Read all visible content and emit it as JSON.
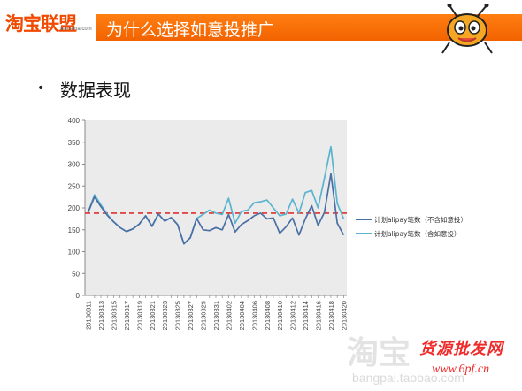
{
  "header": {
    "logo_main": "淘宝联盟",
    "logo_sub": "alimama.com",
    "title": "为什么选择如意投推广"
  },
  "bullet": {
    "text": "数据表现"
  },
  "watermark": {
    "left_text": "淘宝",
    "left_url": "bangpai.taobao.com",
    "right_title": "货源批发网",
    "right_url": "www.6pf.cn"
  },
  "colors": {
    "accent": "#f26300",
    "series1": "#4a6fa5",
    "series2": "#5ab4cf",
    "refline": "#e03030",
    "plotbg": "#ebebeb"
  },
  "chart_data": {
    "type": "line",
    "title": "",
    "xlabel": "",
    "ylabel": "",
    "ylim": [
      0,
      400
    ],
    "yticks": [
      0,
      50,
      100,
      150,
      200,
      250,
      300,
      350,
      400
    ],
    "grid": false,
    "legend_position": "right",
    "x": [
      "20130311",
      "20130312",
      "20130313",
      "20130314",
      "20130315",
      "20130316",
      "20130317",
      "20130318",
      "20130319",
      "20130320",
      "20130321",
      "20130322",
      "20130323",
      "20130324",
      "20130325",
      "20130326",
      "20130327",
      "20130328",
      "20130329",
      "20130330",
      "20130331",
      "20130401",
      "20130402",
      "20130403",
      "20130404",
      "20130405",
      "20130406",
      "20130407",
      "20130408",
      "20130409",
      "20130410",
      "20130411",
      "20130412",
      "20130413",
      "20130414",
      "20130415",
      "20130416",
      "20130417",
      "20130418",
      "20130419",
      "20130420"
    ],
    "xticks": [
      "20130311",
      "20130313",
      "20130315",
      "20130317",
      "20130319",
      "20130321",
      "20130323",
      "20130325",
      "20130327",
      "20130329",
      "20130331",
      "20130402",
      "20130404",
      "20130406",
      "20130408",
      "20130410",
      "20130412",
      "20130414",
      "20130416",
      "20130418",
      "20130420"
    ],
    "series": [
      {
        "name": "计划alipay笔数（不含如意投）",
        "values": [
          190,
          225,
          203,
          183,
          168,
          155,
          146,
          152,
          163,
          182,
          158,
          186,
          170,
          178,
          162,
          118,
          132,
          176,
          150,
          148,
          155,
          150,
          185,
          145,
          162,
          171,
          182,
          188,
          175,
          177,
          142,
          157,
          177,
          138,
          175,
          205,
          160,
          190,
          278,
          165,
          138
        ]
      },
      {
        "name": "计划alipay笔数（含如意投）",
        "values": [
          190,
          230,
          207,
          185,
          168,
          155,
          146,
          152,
          163,
          182,
          158,
          186,
          170,
          178,
          162,
          118,
          132,
          176,
          185,
          195,
          188,
          185,
          222,
          165,
          192,
          195,
          212,
          214,
          218,
          200,
          182,
          186,
          220,
          188,
          235,
          240,
          200,
          268,
          340,
          210,
          175
        ]
      }
    ],
    "reference_line": 188
  }
}
